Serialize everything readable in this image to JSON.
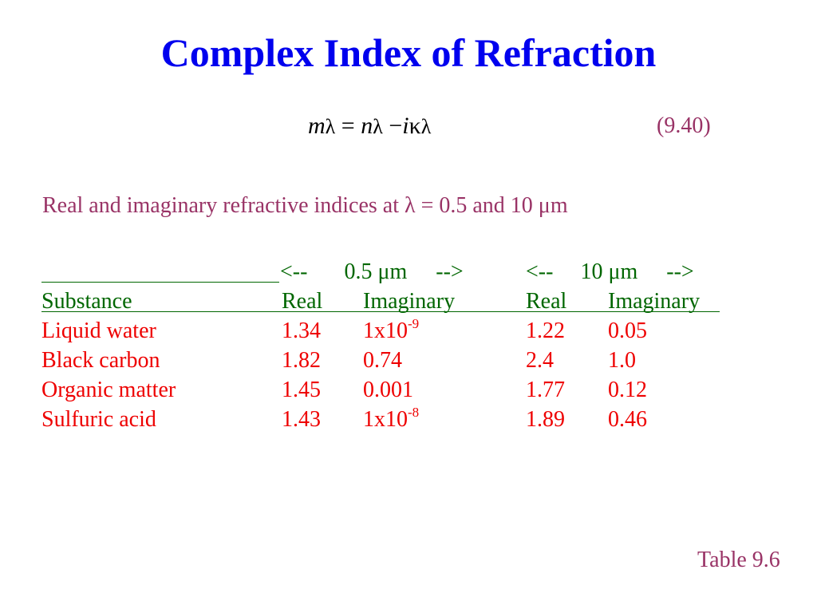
{
  "slide": {
    "title": "Complex Index of Refraction",
    "equation": {
      "m": "m",
      "sub1": "λ",
      "eq": " = ",
      "n": "n",
      "sub2": "λ",
      "minus": " −",
      "i": "i",
      "kappa": "κ",
      "sub3": "λ"
    },
    "equation_number": "(9.40)",
    "caption": "Real and imaginary refractive indices at λ = 0.5 and 10 μm",
    "table_label": "Table 9.6"
  },
  "table": {
    "range_row": {
      "blank": "_________________",
      "range1": {
        "open": "<--",
        "label": "0.5 μm",
        "close": "-->"
      },
      "range2": {
        "open": "<--",
        "label": "10 μm",
        "close": "-->"
      }
    },
    "headers": [
      "Substance",
      "Real",
      "Imaginary",
      "Real",
      "Imaginary"
    ],
    "rows": [
      {
        "substance": "Liquid water",
        "real_05": "1.34",
        "imag_05": "1x10",
        "imag_05_exp": "-9",
        "real_10": "1.22",
        "imag_10": "0.05"
      },
      {
        "substance": "Black carbon",
        "real_05": "1.82",
        "imag_05": "0.74",
        "imag_05_exp": "",
        "real_10": "2.4",
        "imag_10": "1.0"
      },
      {
        "substance": "Organic matter",
        "real_05": "1.45",
        "imag_05": "0.001",
        "imag_05_exp": "",
        "real_10": "1.77",
        "imag_10": "0.12"
      },
      {
        "substance": "Sulfuric acid",
        "real_05": "1.43",
        "imag_05": "1x10",
        "imag_05_exp": "-8",
        "real_10": "1.89",
        "imag_10": "0.46"
      }
    ]
  },
  "colors": {
    "title": "#0000ee",
    "caption": "#993366",
    "header": "#006600",
    "body": "#ee0000"
  }
}
